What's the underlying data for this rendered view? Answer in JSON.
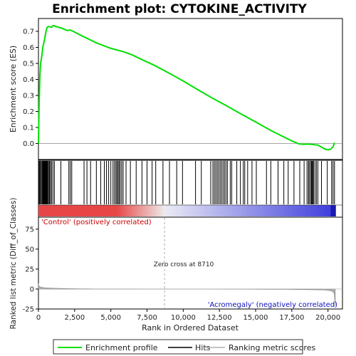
{
  "chart_data": {
    "type": "line",
    "title": "Enrichment plot: CYTOKINE_ACTIVITY",
    "top_panel": {
      "ylabel": "Enrichment score (ES)",
      "ylim": [
        -0.1,
        0.78
      ],
      "yticks": [
        "0.0",
        "0.1",
        "0.2",
        "0.3",
        "0.4",
        "0.5",
        "0.6",
        "0.7"
      ],
      "ytick_values": [
        0.0,
        0.1,
        0.2,
        0.3,
        0.4,
        0.5,
        0.6,
        0.7
      ],
      "xlim": [
        0,
        21000
      ],
      "series": [
        {
          "name": "Enrichment profile",
          "color": "#00e000",
          "x": [
            0,
            50,
            100,
            150,
            200,
            250,
            300,
            350,
            400,
            450,
            500,
            550,
            600,
            700,
            800,
            900,
            1000,
            1100,
            1200,
            1400,
            1600,
            1800,
            2000,
            2200,
            2400,
            3000,
            4000,
            5000,
            5900,
            6500,
            7000,
            8000,
            9000,
            10000,
            11000,
            12000,
            13000,
            14000,
            15000,
            16000,
            17000,
            17500,
            18000,
            18300,
            18700,
            19300,
            19600,
            19800,
            20000,
            20200,
            20350,
            20450
          ],
          "y": [
            0.0,
            0.26,
            0.42,
            0.5,
            0.53,
            0.56,
            0.6,
            0.62,
            0.64,
            0.66,
            0.69,
            0.71,
            0.725,
            0.73,
            0.728,
            0.725,
            0.735,
            0.735,
            0.73,
            0.725,
            0.72,
            0.712,
            0.705,
            0.708,
            0.7,
            0.672,
            0.628,
            0.594,
            0.572,
            0.552,
            0.53,
            0.488,
            0.44,
            0.39,
            0.336,
            0.284,
            0.235,
            0.184,
            0.134,
            0.084,
            0.038,
            0.016,
            -0.003,
            -0.005,
            -0.004,
            -0.01,
            -0.025,
            -0.035,
            -0.04,
            -0.035,
            -0.02,
            0.005
          ]
        }
      ]
    },
    "hits_panel": {
      "positions": [
        20,
        70,
        130,
        190,
        250,
        300,
        330,
        360,
        390,
        420,
        450,
        480,
        510,
        540,
        570,
        600,
        640,
        700,
        760,
        830,
        900,
        1000,
        1100,
        1550,
        2100,
        2200,
        2300,
        3150,
        3350,
        3600,
        4000,
        4300,
        4550,
        4700,
        4850,
        5000,
        5150,
        5250,
        5350,
        5420,
        5500,
        5570,
        5650,
        5750,
        5850,
        6050,
        6350,
        6750,
        7150,
        7500,
        7850,
        8100,
        8600,
        9050,
        9550,
        9950,
        10850,
        11250,
        11900,
        12050,
        12150,
        12250,
        12350,
        12450,
        12550,
        12650,
        12750,
        12850,
        12950,
        13050,
        13250,
        13350,
        13700,
        13950,
        14150,
        14250,
        14450,
        14750,
        15050,
        15750,
        16050,
        16550,
        16950,
        17250,
        17650,
        18050,
        18350,
        18550,
        18650,
        18700,
        18800,
        18850,
        18900,
        18950,
        19000,
        19100,
        19200,
        19300,
        19550,
        19950,
        20250,
        20350,
        20450
      ]
    },
    "gradient_labels": {
      "positive": "'Control' (positively correlated)",
      "negative": "'Acromegaly' (negatively correlated)"
    },
    "bottom_panel": {
      "ylabel": "Ranked list metric (Diff_of_Classes)",
      "xlabel": "Rank in Ordered Dataset",
      "ylim": [
        -25,
        90
      ],
      "yticks": [
        "-25",
        "0",
        "25",
        "50",
        "75"
      ],
      "ytick_values": [
        -25,
        0,
        25,
        50,
        75
      ],
      "xticks": [
        "0",
        "2,500",
        "5,000",
        "7,500",
        "10,000",
        "12,500",
        "15,000",
        "17,500",
        "20,000"
      ],
      "xtick_values": [
        0,
        2500,
        5000,
        7500,
        10000,
        12500,
        15000,
        17500,
        20000
      ],
      "zero_cross_label": "Zero cross at 8710",
      "zero_cross": 8710,
      "series": [
        {
          "name": "Ranking metric scores",
          "color": "#b0b0b0",
          "x": [
            0,
            20,
            60,
            120,
            250,
            500,
            1000,
            2000,
            2800,
            4000,
            6000,
            8710,
            11000,
            14000,
            17000,
            19000,
            19800,
            20100,
            20300,
            20400,
            20450,
            20500
          ],
          "y": [
            7,
            4.5,
            3.2,
            2.6,
            2.0,
            1.5,
            1.0,
            0.5,
            0.3,
            0.15,
            0.05,
            0.0,
            -0.05,
            -0.2,
            -0.4,
            -0.8,
            -1.2,
            -1.8,
            -2.8,
            -4.5,
            -8,
            -22
          ]
        }
      ]
    },
    "legend": {
      "position": "bottom",
      "items": [
        {
          "label": "Enrichment profile",
          "color": "#00e000"
        },
        {
          "label": "Hits",
          "color": "#000000"
        },
        {
          "label": "Ranking metric scores",
          "color": "#b0b0b0"
        }
      ]
    }
  }
}
